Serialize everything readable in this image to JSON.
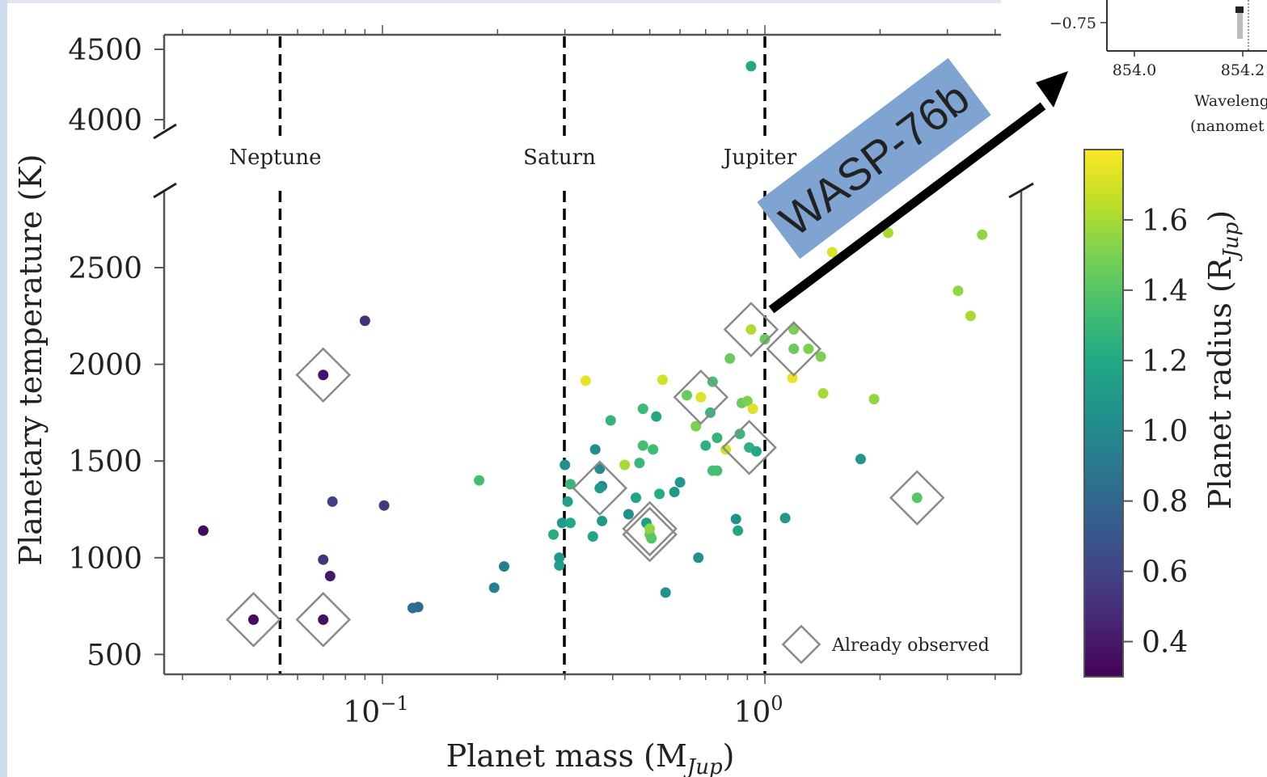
{
  "chart_data": {
    "type": "scatter",
    "xlabel": "Planet mass (M",
    "xlabel_sub": "Jup",
    "xlabel_close": ")",
    "ylabel": "Planetary temperature (K)",
    "x_scale": "log",
    "xlim": [
      0.03,
      4.2
    ],
    "ylim_lower": [
      400,
      2850
    ],
    "ylim_upper": [
      3900,
      4600
    ],
    "x_ticks": [
      {
        "value": 0.1,
        "base": "10",
        "exp": "−1"
      },
      {
        "value": 1,
        "base": "10",
        "exp": "0"
      }
    ],
    "y_ticks_lower": [
      {
        "value": 500,
        "label": "500"
      },
      {
        "value": 1000,
        "label": "1000"
      },
      {
        "value": 1500,
        "label": "1500"
      },
      {
        "value": 2000,
        "label": "2000"
      },
      {
        "value": 2500,
        "label": "2500"
      }
    ],
    "y_ticks_upper": [
      {
        "value": 4000,
        "label": "4000"
      },
      {
        "value": 4500,
        "label": "4500"
      }
    ],
    "reference_lines": [
      {
        "label": "Neptune",
        "mass": 0.054
      },
      {
        "label": "Saturn",
        "mass": 0.299
      },
      {
        "label": "Jupiter",
        "mass": 1.0
      }
    ],
    "legend": {
      "label": "Already observed",
      "placement": "lower-right"
    },
    "colorbar": {
      "label": "Planet radius (R",
      "label_sub": "Jup",
      "label_close": ")",
      "range": [
        0.3,
        1.8
      ],
      "ticks": [
        {
          "value": 0.4,
          "label": "0.4"
        },
        {
          "value": 0.6,
          "label": "0.6"
        },
        {
          "value": 0.8,
          "label": "0.8"
        },
        {
          "value": 1.0,
          "label": "1.0"
        },
        {
          "value": 1.2,
          "label": "1.2"
        },
        {
          "value": 1.4,
          "label": "1.4"
        },
        {
          "value": 1.6,
          "label": "1.6"
        }
      ]
    },
    "points": [
      {
        "mass": 0.034,
        "temp": 1140,
        "radius": 0.34
      },
      {
        "mass": 0.046,
        "temp": 680,
        "radius": 0.35,
        "observed": true
      },
      {
        "mass": 0.07,
        "temp": 680,
        "radius": 0.36,
        "observed": true
      },
      {
        "mass": 0.07,
        "temp": 1945,
        "radius": 0.38,
        "observed": true
      },
      {
        "mass": 0.09,
        "temp": 2225,
        "radius": 0.5
      },
      {
        "mass": 0.07,
        "temp": 990,
        "radius": 0.52
      },
      {
        "mass": 0.073,
        "temp": 905,
        "radius": 0.4
      },
      {
        "mass": 0.074,
        "temp": 1290,
        "radius": 0.58
      },
      {
        "mass": 0.101,
        "temp": 1270,
        "radius": 0.55
      },
      {
        "mass": 0.12,
        "temp": 740,
        "radius": 0.85
      },
      {
        "mass": 0.124,
        "temp": 745,
        "radius": 0.82
      },
      {
        "mass": 0.179,
        "temp": 1400,
        "radius": 1.35
      },
      {
        "mass": 0.196,
        "temp": 845,
        "radius": 0.95
      },
      {
        "mass": 0.208,
        "temp": 955,
        "radius": 0.93
      },
      {
        "mass": 0.28,
        "temp": 1120,
        "radius": 1.22
      },
      {
        "mass": 0.29,
        "temp": 960,
        "radius": 1.15
      },
      {
        "mass": 0.29,
        "temp": 1000,
        "radius": 1.08
      },
      {
        "mass": 0.295,
        "temp": 1180,
        "radius": 1.1
      },
      {
        "mass": 0.3,
        "temp": 1480,
        "radius": 1.05
      },
      {
        "mass": 0.305,
        "temp": 1290,
        "radius": 1.15
      },
      {
        "mass": 0.31,
        "temp": 1180,
        "radius": 1.2
      },
      {
        "mass": 0.31,
        "temp": 1380,
        "radius": 1.3
      },
      {
        "mass": 0.34,
        "temp": 1915,
        "radius": 1.75
      },
      {
        "mass": 0.355,
        "temp": 1110,
        "radius": 1.18
      },
      {
        "mass": 0.36,
        "temp": 1560,
        "radius": 1.02
      },
      {
        "mass": 0.37,
        "temp": 1460,
        "radius": 1.02
      },
      {
        "mass": 0.375,
        "temp": 1370,
        "radius": 1.0
      },
      {
        "mass": 0.37,
        "temp": 1360,
        "radius": 1.1,
        "observed": true
      },
      {
        "mass": 0.375,
        "temp": 1190,
        "radius": 1.1
      },
      {
        "mass": 0.395,
        "temp": 1710,
        "radius": 1.28
      },
      {
        "mass": 0.43,
        "temp": 1480,
        "radius": 1.6
      },
      {
        "mass": 0.44,
        "temp": 1225,
        "radius": 1.05
      },
      {
        "mass": 0.46,
        "temp": 1310,
        "radius": 1.18
      },
      {
        "mass": 0.47,
        "temp": 1490,
        "radius": 1.3
      },
      {
        "mass": 0.48,
        "temp": 1770,
        "radius": 1.32
      },
      {
        "mass": 0.48,
        "temp": 1580,
        "radius": 1.35
      },
      {
        "mass": 0.49,
        "temp": 1180,
        "radius": 1.15
      },
      {
        "mass": 0.5,
        "temp": 1120,
        "radius": 1.45,
        "observed": true
      },
      {
        "mass": 0.5,
        "temp": 1150,
        "radius": 1.55,
        "observed": true
      },
      {
        "mass": 0.505,
        "temp": 1100,
        "radius": 1.4
      },
      {
        "mass": 0.51,
        "temp": 1560,
        "radius": 1.33
      },
      {
        "mass": 0.52,
        "temp": 1730,
        "radius": 1.2
      },
      {
        "mass": 0.53,
        "temp": 1330,
        "radius": 1.22
      },
      {
        "mass": 0.54,
        "temp": 1920,
        "radius": 1.7
      },
      {
        "mass": 0.55,
        "temp": 820,
        "radius": 1.05
      },
      {
        "mass": 0.58,
        "temp": 1340,
        "radius": 1.1
      },
      {
        "mass": 0.6,
        "temp": 1390,
        "radius": 1.08
      },
      {
        "mass": 0.625,
        "temp": 1840,
        "radius": 1.45
      },
      {
        "mass": 0.66,
        "temp": 1680,
        "radius": 1.5
      },
      {
        "mass": 0.67,
        "temp": 1000,
        "radius": 1.05
      },
      {
        "mass": 0.68,
        "temp": 1830,
        "radius": 1.72,
        "observed": true
      },
      {
        "mass": 0.7,
        "temp": 1580,
        "radius": 1.25
      },
      {
        "mass": 0.72,
        "temp": 1750,
        "radius": 1.3
      },
      {
        "mass": 0.73,
        "temp": 1910,
        "radius": 1.35
      },
      {
        "mass": 0.73,
        "temp": 1450,
        "radius": 1.35
      },
      {
        "mass": 0.75,
        "temp": 1450,
        "radius": 1.35
      },
      {
        "mass": 0.75,
        "temp": 1620,
        "radius": 1.28
      },
      {
        "mass": 0.79,
        "temp": 1560,
        "radius": 1.7
      },
      {
        "mass": 0.81,
        "temp": 2030,
        "radius": 1.45
      },
      {
        "mass": 0.84,
        "temp": 1200,
        "radius": 1.05
      },
      {
        "mass": 0.85,
        "temp": 1140,
        "radius": 1.18
      },
      {
        "mass": 0.86,
        "temp": 1640,
        "radius": 1.3
      },
      {
        "mass": 0.87,
        "temp": 1800,
        "radius": 1.45
      },
      {
        "mass": 0.9,
        "temp": 1810,
        "radius": 1.5
      },
      {
        "mass": 0.91,
        "temp": 1570,
        "radius": 1.25,
        "observed": true
      },
      {
        "mass": 0.92,
        "temp": 2180,
        "radius": 1.62,
        "observed": true
      },
      {
        "mass": 0.93,
        "temp": 1770,
        "radius": 1.72
      },
      {
        "mass": 0.95,
        "temp": 1550,
        "radius": 1.2
      },
      {
        "mass": 1.0,
        "temp": 2130,
        "radius": 1.45
      },
      {
        "mass": 1.13,
        "temp": 1205,
        "radius": 1.1
      },
      {
        "mass": 1.18,
        "temp": 1930,
        "radius": 1.75
      },
      {
        "mass": 1.19,
        "temp": 2180,
        "radius": 1.5
      },
      {
        "mass": 1.19,
        "temp": 2080,
        "radius": 1.45,
        "observed": true
      },
      {
        "mass": 1.3,
        "temp": 2080,
        "radius": 1.5
      },
      {
        "mass": 1.4,
        "temp": 2040,
        "radius": 1.5
      },
      {
        "mass": 1.42,
        "temp": 1850,
        "radius": 1.6
      },
      {
        "mass": 1.5,
        "temp": 2580,
        "radius": 1.72
      },
      {
        "mass": 1.78,
        "temp": 1510,
        "radius": 1.08
      },
      {
        "mass": 1.93,
        "temp": 1820,
        "radius": 1.55
      },
      {
        "mass": 2.1,
        "temp": 2680,
        "radius": 1.6
      },
      {
        "mass": 2.5,
        "temp": 1310,
        "radius": 1.4,
        "observed": true
      },
      {
        "mass": 3.2,
        "temp": 2380,
        "radius": 1.55
      },
      {
        "mass": 3.45,
        "temp": 2250,
        "radius": 1.6
      },
      {
        "mass": 3.7,
        "temp": 2670,
        "radius": 1.55
      },
      {
        "mass": 0.92,
        "temp": 4380,
        "radius": 1.2
      }
    ]
  },
  "annotation": {
    "label": "WASP-76b",
    "box_color": "#7fa4d2"
  },
  "inset": {
    "y_tick": "−0.75",
    "x_ticks": [
      "854.0",
      "854.2"
    ],
    "xlabel_line1": "Waveleng",
    "xlabel_line2": "(nanomet"
  },
  "colors": {
    "axis": "#555555",
    "reference_line": "#000000",
    "observed_marker": "#8a8a8a",
    "left_strip": "#cfdcee",
    "top_strip": "#e1e6f0"
  }
}
